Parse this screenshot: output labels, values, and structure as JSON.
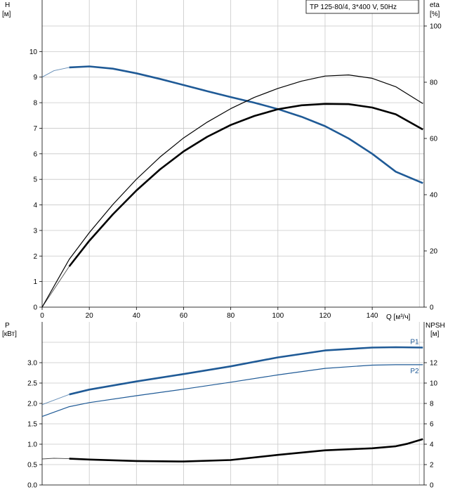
{
  "legend_text": "TP 125-80/4, 3*400 V, 50Hz",
  "colors": {
    "blue": "#1f5a96",
    "blue_light": "#6f8fb8",
    "black": "#000000",
    "grid": "#c8c8c8"
  },
  "chart_data": [
    {
      "type": "line",
      "panel": "top",
      "title": "",
      "xlabel": "Q [м³/ч]",
      "xlim": [
        0,
        162
      ],
      "xticks": [
        0,
        20,
        40,
        60,
        80,
        100,
        120,
        140
      ],
      "y_left": {
        "label": "H",
        "unit": "[м]",
        "lim": [
          0,
          11
        ],
        "ticks": [
          0,
          1,
          2,
          3,
          4,
          5,
          6,
          7,
          8,
          9,
          10
        ]
      },
      "y_right": {
        "label": "eta",
        "unit": "[%]",
        "lim": [
          0,
          100
        ],
        "ticks": [
          0,
          20,
          40,
          60,
          80,
          100
        ]
      },
      "grid": true,
      "series": [
        {
          "role": "H",
          "axis": "left",
          "color": "#1f5a96",
          "thin_range": [
            0,
            11.5
          ],
          "x": [
            0,
            5,
            11.5,
            20,
            30,
            40,
            50,
            60,
            70,
            80,
            90,
            100,
            110,
            120,
            130,
            140,
            150,
            161.5
          ],
          "y": [
            9.0,
            9.25,
            9.38,
            9.42,
            9.33,
            9.15,
            8.93,
            8.69,
            8.45,
            8.22,
            8.0,
            7.75,
            7.45,
            7.08,
            6.6,
            6.0,
            5.3,
            4.85
          ]
        },
        {
          "role": "eta",
          "axis": "right",
          "color": "#000000",
          "thin_range": [
            0,
            11.5
          ],
          "x": [
            0,
            11.5,
            20,
            30,
            40,
            50,
            60,
            70,
            80,
            90,
            100,
            110,
            120,
            130,
            140,
            150,
            161.5
          ],
          "y": [
            0,
            14.5,
            23.6,
            33.0,
            41.5,
            49.0,
            55.4,
            60.6,
            64.8,
            68.0,
            70.4,
            71.8,
            72.3,
            72.2,
            71.0,
            68.6,
            63.2
          ]
        },
        {
          "role": "eta-thin",
          "axis": "right",
          "color": "#000000",
          "thin_range": [
            0,
            161.5
          ],
          "x": [
            0,
            11.5,
            20,
            30,
            40,
            50,
            60,
            70,
            80,
            90,
            100,
            110,
            120,
            130,
            140,
            150,
            161.5
          ],
          "y": [
            0,
            17.0,
            26.5,
            36.5,
            45.5,
            53.4,
            60.2,
            65.8,
            70.6,
            74.6,
            77.8,
            80.4,
            82.2,
            82.6,
            81.4,
            78.4,
            72.4
          ]
        }
      ]
    },
    {
      "type": "line",
      "panel": "bottom",
      "title": "",
      "xlim": [
        0,
        162
      ],
      "y_left": {
        "label": "P",
        "unit": "[кВт]",
        "lim": [
          0,
          3.5
        ],
        "ticks": [
          0.0,
          0.5,
          1.0,
          1.5,
          2.0,
          2.5,
          3.0
        ],
        "tick_labels": [
          "0.0",
          "0.5",
          "1.0",
          "1.5",
          "2.0",
          "2.5",
          "3.0"
        ]
      },
      "y_right": {
        "label": "NPSH",
        "unit": "[м]",
        "lim": [
          0,
          14
        ],
        "ticks": [
          0,
          2,
          4,
          6,
          8,
          10,
          12
        ]
      },
      "grid": true,
      "series": [
        {
          "name": "P1",
          "axis": "left",
          "color": "#1f5a96",
          "thin_range": [
            0,
            11.5
          ],
          "x": [
            0,
            11.5,
            20,
            40,
            60,
            80,
            100,
            120,
            140,
            150,
            161.5
          ],
          "y": [
            1.97,
            2.22,
            2.34,
            2.54,
            2.72,
            2.91,
            3.13,
            3.3,
            3.37,
            3.38,
            3.37
          ]
        },
        {
          "name": "P2",
          "axis": "left",
          "color": "#1f5a96",
          "thin_range": [
            0,
            161.5
          ],
          "x": [
            0,
            11.5,
            20,
            40,
            60,
            80,
            100,
            120,
            140,
            150,
            161.5
          ],
          "y": [
            1.68,
            1.92,
            2.02,
            2.19,
            2.35,
            2.52,
            2.7,
            2.86,
            2.94,
            2.95,
            2.95
          ]
        },
        {
          "role": "NPSH",
          "axis": "right",
          "color": "#000000",
          "thin_range": [
            0,
            11.5
          ],
          "x": [
            0,
            5,
            11.5,
            20,
            40,
            60,
            80,
            100,
            120,
            140,
            150,
            155,
            161.5
          ],
          "y": [
            2.55,
            2.62,
            2.58,
            2.5,
            2.35,
            2.3,
            2.45,
            2.95,
            3.4,
            3.6,
            3.8,
            4.05,
            4.5
          ]
        }
      ]
    }
  ]
}
